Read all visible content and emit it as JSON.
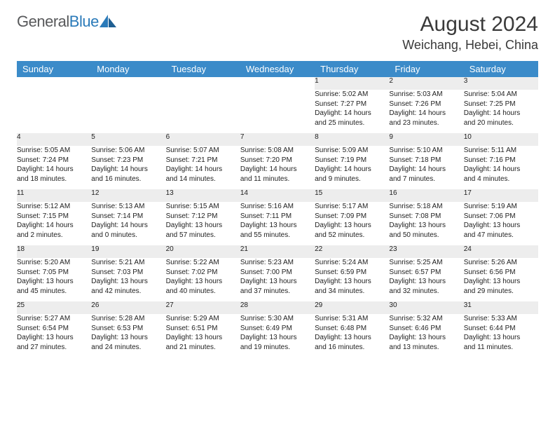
{
  "logo": {
    "text_gray": "General",
    "text_blue": "Blue"
  },
  "title": "August 2024",
  "location": "Weichang, Hebei, China",
  "colors": {
    "header_bg": "#3b8bc9",
    "header_text": "#ffffff",
    "daynum_bg": "#ededed",
    "rule": "#2f6fa6",
    "body_text": "#222222",
    "logo_gray": "#58595b",
    "logo_blue": "#2a7ab9"
  },
  "typography": {
    "title_fontsize": 30,
    "location_fontsize": 18,
    "header_fontsize": 13,
    "daynum_fontsize": 12,
    "cell_fontsize": 10
  },
  "weekdays": [
    "Sunday",
    "Monday",
    "Tuesday",
    "Wednesday",
    "Thursday",
    "Friday",
    "Saturday"
  ],
  "weeks": [
    [
      null,
      null,
      null,
      null,
      {
        "n": "1",
        "sr": "5:02 AM",
        "ss": "7:27 PM",
        "d1": "14 hours",
        "d2": "and 25 minutes."
      },
      {
        "n": "2",
        "sr": "5:03 AM",
        "ss": "7:26 PM",
        "d1": "14 hours",
        "d2": "and 23 minutes."
      },
      {
        "n": "3",
        "sr": "5:04 AM",
        "ss": "7:25 PM",
        "d1": "14 hours",
        "d2": "and 20 minutes."
      }
    ],
    [
      {
        "n": "4",
        "sr": "5:05 AM",
        "ss": "7:24 PM",
        "d1": "14 hours",
        "d2": "and 18 minutes."
      },
      {
        "n": "5",
        "sr": "5:06 AM",
        "ss": "7:23 PM",
        "d1": "14 hours",
        "d2": "and 16 minutes."
      },
      {
        "n": "6",
        "sr": "5:07 AM",
        "ss": "7:21 PM",
        "d1": "14 hours",
        "d2": "and 14 minutes."
      },
      {
        "n": "7",
        "sr": "5:08 AM",
        "ss": "7:20 PM",
        "d1": "14 hours",
        "d2": "and 11 minutes."
      },
      {
        "n": "8",
        "sr": "5:09 AM",
        "ss": "7:19 PM",
        "d1": "14 hours",
        "d2": "and 9 minutes."
      },
      {
        "n": "9",
        "sr": "5:10 AM",
        "ss": "7:18 PM",
        "d1": "14 hours",
        "d2": "and 7 minutes."
      },
      {
        "n": "10",
        "sr": "5:11 AM",
        "ss": "7:16 PM",
        "d1": "14 hours",
        "d2": "and 4 minutes."
      }
    ],
    [
      {
        "n": "11",
        "sr": "5:12 AM",
        "ss": "7:15 PM",
        "d1": "14 hours",
        "d2": "and 2 minutes."
      },
      {
        "n": "12",
        "sr": "5:13 AM",
        "ss": "7:14 PM",
        "d1": "14 hours",
        "d2": "and 0 minutes."
      },
      {
        "n": "13",
        "sr": "5:15 AM",
        "ss": "7:12 PM",
        "d1": "13 hours",
        "d2": "and 57 minutes."
      },
      {
        "n": "14",
        "sr": "5:16 AM",
        "ss": "7:11 PM",
        "d1": "13 hours",
        "d2": "and 55 minutes."
      },
      {
        "n": "15",
        "sr": "5:17 AM",
        "ss": "7:09 PM",
        "d1": "13 hours",
        "d2": "and 52 minutes."
      },
      {
        "n": "16",
        "sr": "5:18 AM",
        "ss": "7:08 PM",
        "d1": "13 hours",
        "d2": "and 50 minutes."
      },
      {
        "n": "17",
        "sr": "5:19 AM",
        "ss": "7:06 PM",
        "d1": "13 hours",
        "d2": "and 47 minutes."
      }
    ],
    [
      {
        "n": "18",
        "sr": "5:20 AM",
        "ss": "7:05 PM",
        "d1": "13 hours",
        "d2": "and 45 minutes."
      },
      {
        "n": "19",
        "sr": "5:21 AM",
        "ss": "7:03 PM",
        "d1": "13 hours",
        "d2": "and 42 minutes."
      },
      {
        "n": "20",
        "sr": "5:22 AM",
        "ss": "7:02 PM",
        "d1": "13 hours",
        "d2": "and 40 minutes."
      },
      {
        "n": "21",
        "sr": "5:23 AM",
        "ss": "7:00 PM",
        "d1": "13 hours",
        "d2": "and 37 minutes."
      },
      {
        "n": "22",
        "sr": "5:24 AM",
        "ss": "6:59 PM",
        "d1": "13 hours",
        "d2": "and 34 minutes."
      },
      {
        "n": "23",
        "sr": "5:25 AM",
        "ss": "6:57 PM",
        "d1": "13 hours",
        "d2": "and 32 minutes."
      },
      {
        "n": "24",
        "sr": "5:26 AM",
        "ss": "6:56 PM",
        "d1": "13 hours",
        "d2": "and 29 minutes."
      }
    ],
    [
      {
        "n": "25",
        "sr": "5:27 AM",
        "ss": "6:54 PM",
        "d1": "13 hours",
        "d2": "and 27 minutes."
      },
      {
        "n": "26",
        "sr": "5:28 AM",
        "ss": "6:53 PM",
        "d1": "13 hours",
        "d2": "and 24 minutes."
      },
      {
        "n": "27",
        "sr": "5:29 AM",
        "ss": "6:51 PM",
        "d1": "13 hours",
        "d2": "and 21 minutes."
      },
      {
        "n": "28",
        "sr": "5:30 AM",
        "ss": "6:49 PM",
        "d1": "13 hours",
        "d2": "and 19 minutes."
      },
      {
        "n": "29",
        "sr": "5:31 AM",
        "ss": "6:48 PM",
        "d1": "13 hours",
        "d2": "and 16 minutes."
      },
      {
        "n": "30",
        "sr": "5:32 AM",
        "ss": "6:46 PM",
        "d1": "13 hours",
        "d2": "and 13 minutes."
      },
      {
        "n": "31",
        "sr": "5:33 AM",
        "ss": "6:44 PM",
        "d1": "13 hours",
        "d2": "and 11 minutes."
      }
    ]
  ]
}
